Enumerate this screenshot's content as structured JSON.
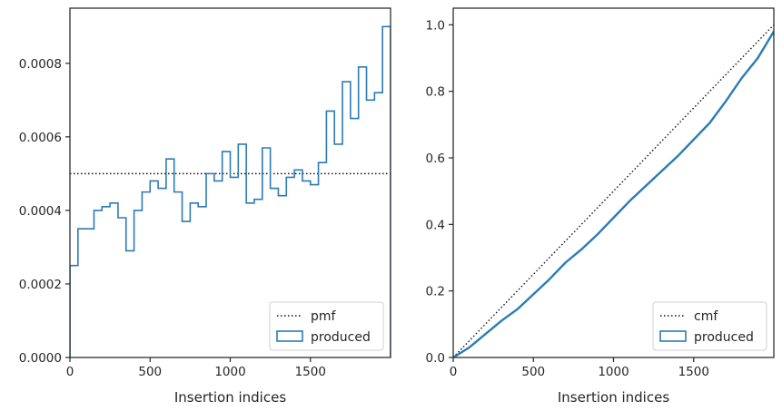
{
  "colors": {
    "series": "#2b7bb5",
    "ref": "#111111",
    "spine": "#262626",
    "text": "#262626"
  },
  "chart_data": [
    {
      "type": "line",
      "xlabel": "Insertion indices",
      "ylabel": "",
      "xlim": [
        0,
        2000
      ],
      "ylim": [
        0,
        0.00095
      ],
      "xticks": [
        0,
        500,
        1000,
        1500
      ],
      "xtick_labels": [
        "0",
        "500",
        "1000",
        "1500"
      ],
      "yticks": [
        0,
        0.0002,
        0.0004,
        0.0006,
        0.0008
      ],
      "ytick_labels": [
        "0.0000",
        "0.0002",
        "0.0004",
        "0.0006",
        "0.0008"
      ],
      "legend_position": "lower-right",
      "legend": [
        "pmf",
        "produced"
      ],
      "reference": {
        "name": "pmf",
        "style": "dotted",
        "y": 0.0005
      },
      "series": [
        {
          "name": "produced",
          "style": "step",
          "bin_width": 50,
          "values": [
            0.00025,
            0.00035,
            0.00035,
            0.0004,
            0.00041,
            0.00042,
            0.00038,
            0.00029,
            0.0004,
            0.00045,
            0.00048,
            0.00046,
            0.00054,
            0.00045,
            0.00037,
            0.00042,
            0.00041,
            0.0005,
            0.00048,
            0.00056,
            0.00049,
            0.00058,
            0.00042,
            0.00043,
            0.00057,
            0.00046,
            0.00044,
            0.00049,
            0.00051,
            0.00048,
            0.00047,
            0.00053,
            0.00067,
            0.00058,
            0.00075,
            0.00065,
            0.00079,
            0.0007,
            0.00072,
            0.0009
          ]
        }
      ]
    },
    {
      "type": "line",
      "xlabel": "Insertion indices",
      "ylabel": "",
      "xlim": [
        0,
        2000
      ],
      "ylim": [
        0,
        1.05
      ],
      "xticks": [
        0,
        500,
        1000,
        1500
      ],
      "xtick_labels": [
        "0",
        "500",
        "1000",
        "1500"
      ],
      "yticks": [
        0,
        0.2,
        0.4,
        0.6,
        0.8,
        1.0
      ],
      "ytick_labels": [
        "0.0",
        "0.2",
        "0.4",
        "0.6",
        "0.8",
        "1.0"
      ],
      "legend_position": "lower-right",
      "legend": [
        "cmf",
        "produced"
      ],
      "reference": {
        "name": "cmf",
        "style": "dotted",
        "x": [
          0,
          2000
        ],
        "y": [
          0,
          1.0
        ]
      },
      "series": [
        {
          "name": "produced",
          "style": "line",
          "x": [
            0,
            100,
            200,
            300,
            400,
            500,
            600,
            700,
            800,
            900,
            1000,
            1100,
            1200,
            1300,
            1400,
            1500,
            1600,
            1700,
            1800,
            1900,
            2000
          ],
          "y": [
            0,
            0.03,
            0.07,
            0.11,
            0.145,
            0.19,
            0.235,
            0.285,
            0.325,
            0.37,
            0.42,
            0.47,
            0.515,
            0.56,
            0.605,
            0.655,
            0.705,
            0.77,
            0.84,
            0.9,
            0.98
          ]
        }
      ]
    }
  ]
}
